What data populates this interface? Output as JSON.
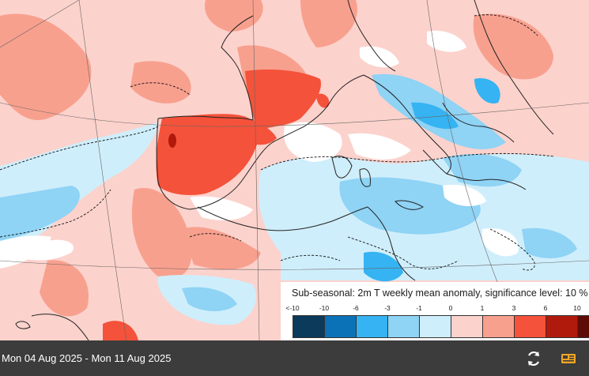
{
  "legend": {
    "title": "Sub-seasonal: 2m T weekly mean anomaly, significance level: 10 %",
    "ticks": [
      "<-10",
      "-10",
      "-6",
      "-3",
      "-1",
      "0",
      "1",
      "3",
      "6",
      "10"
    ],
    "colors": [
      "#0b3a5a",
      "#0b72b8",
      "#35b3f2",
      "#8fd3f5",
      "#cfeefb",
      "#fcd2cc",
      "#f8a08e",
      "#f4523a",
      "#b01a0c",
      "#5e0d06"
    ]
  },
  "footer": {
    "date_range": "Mon 04 Aug 2025 - Mon 11 Aug 2025",
    "refresh_icon": "refresh-icon",
    "layers_icon": "layers-icon",
    "accent": "#f5a623"
  },
  "map": {
    "region": "Western Europe, Mediterranean and North Africa",
    "field": "2m temperature weekly mean anomaly"
  }
}
